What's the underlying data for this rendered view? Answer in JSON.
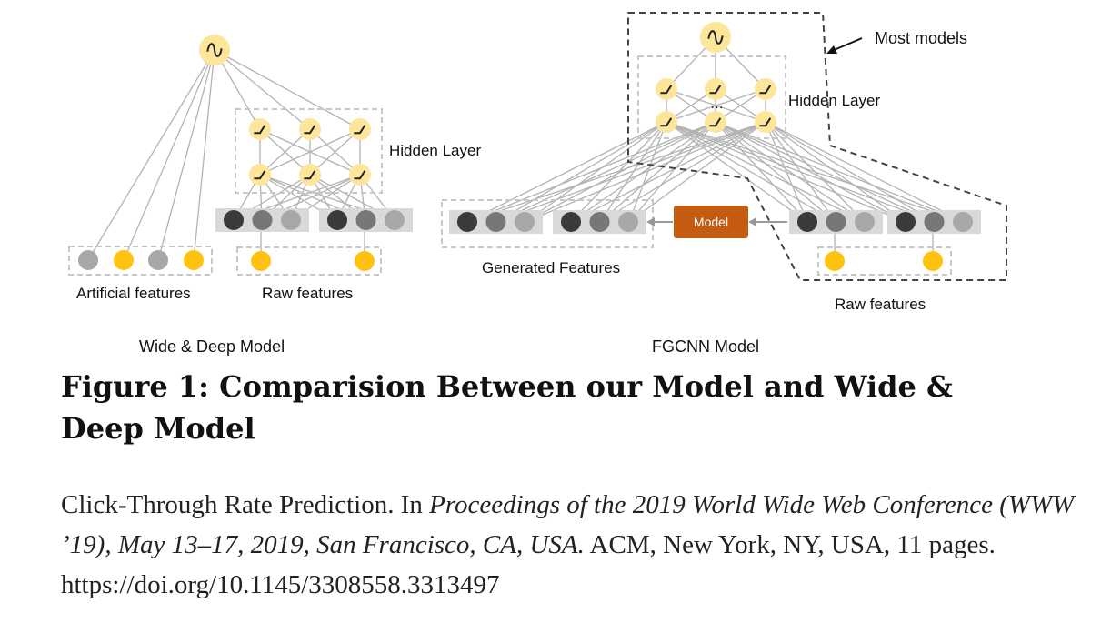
{
  "figure": {
    "left_model": {
      "title": "Wide & Deep Model",
      "hidden_layer_label": "Hidden Layer",
      "artificial_features_label": "Artificial features",
      "raw_features_label": "Raw features"
    },
    "right_model": {
      "title": "FGCNN Model",
      "hidden_layer_label": "Hidden Layer",
      "hidden_ellipsis": "…",
      "generated_features_label": "Generated Features",
      "raw_features_label": "Raw features",
      "model_box_label": "Model",
      "most_models_label": "Most models"
    },
    "colors": {
      "neuron": "#fde59a",
      "neuron_stroke": "#f1cf6b",
      "raw_feature": "#ffc20e",
      "embed_dark": "#3a3a3a",
      "embed_mid": "#777777",
      "embed_light": "#a8a8a8",
      "embed_bg": "#d9d9d9",
      "model_box": "#c55a11",
      "edge": "#b3b3b3"
    }
  },
  "caption": "Figure 1: Comparision Between our Model and Wide & Deep Model",
  "citation": {
    "part1": "Click-Through Rate Prediction. In ",
    "italic": "Proceedings of the 2019 World Wide Web Conference (WWW ’19), May 13–17, 2019, San Francisco, CA, USA.",
    "part2": " ACM, New York, NY, USA, 11 pages. https://doi.org/10.1145/3308558.3313497"
  }
}
